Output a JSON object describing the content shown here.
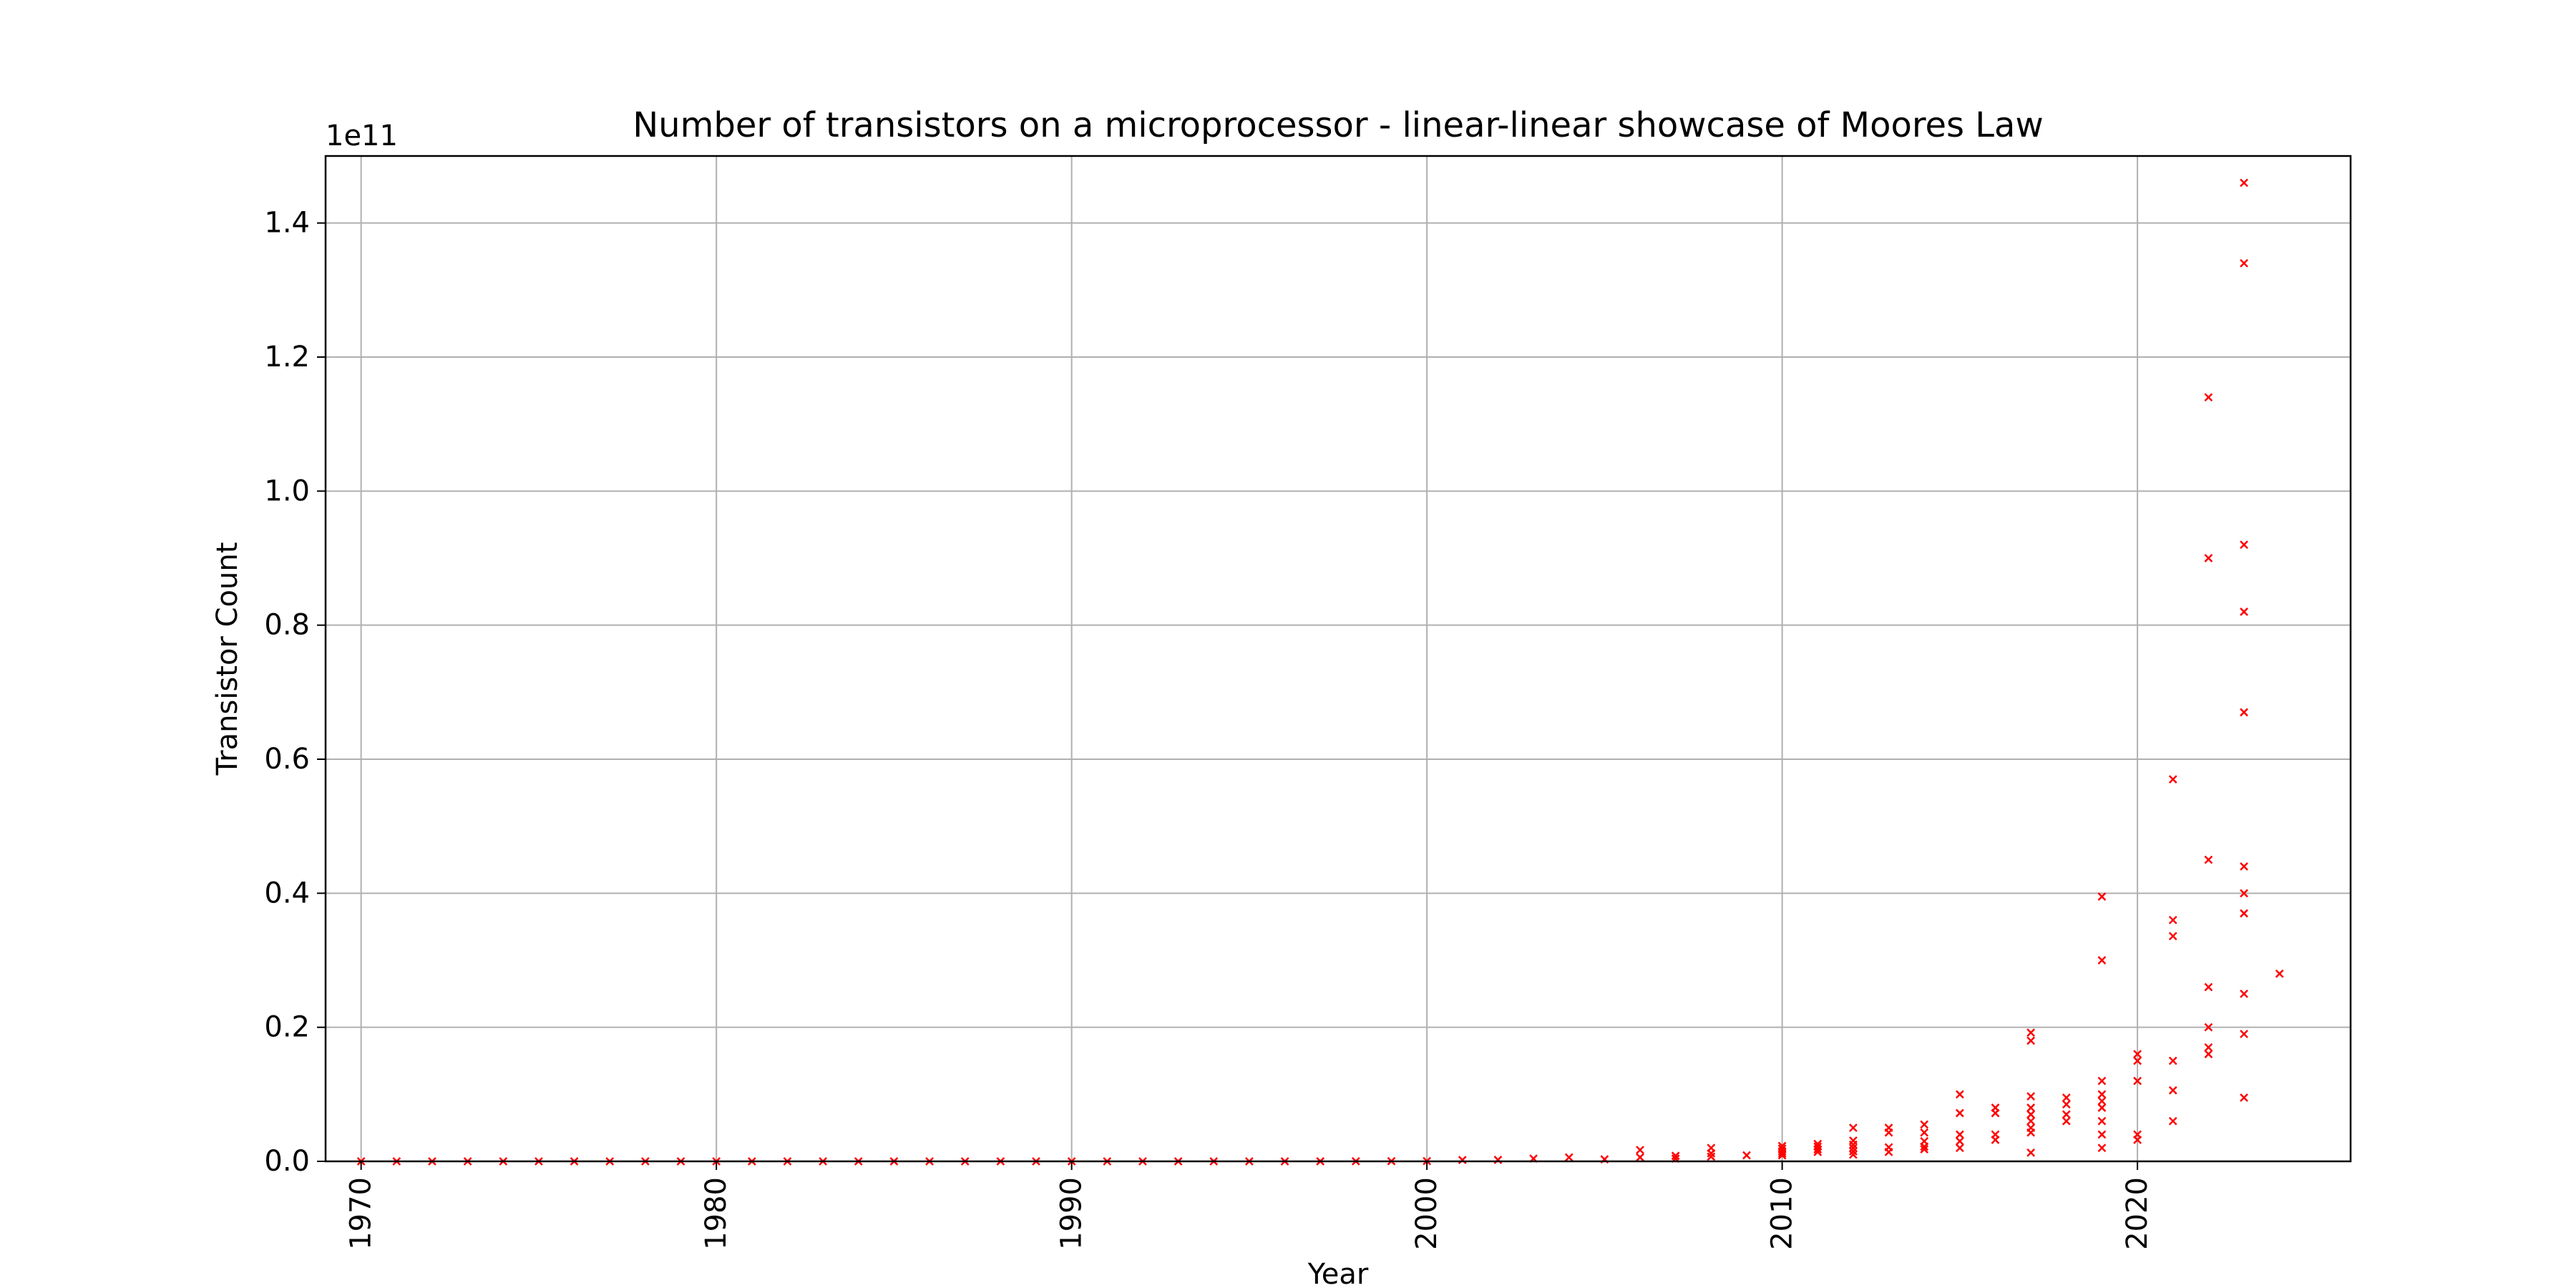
{
  "chart_data": {
    "type": "scatter",
    "title": "Number of transistors on a microprocessor - linear-linear showcase of Moores Law",
    "xlabel": "Year",
    "ylabel": "Transistor Count",
    "y_offset_label": "1e11",
    "xlim": [
      1969,
      2026
    ],
    "ylim": [
      0,
      150000000000.0
    ],
    "xticks": [
      1970,
      1980,
      1990,
      2000,
      2010,
      2020
    ],
    "xtick_labels": [
      "1970",
      "1980",
      "1990",
      "2000",
      "2010",
      "2020"
    ],
    "yticks": [
      0,
      20000000000.0,
      40000000000.0,
      60000000000.0,
      80000000000.0,
      100000000000.0,
      120000000000.0,
      140000000000.0
    ],
    "ytick_labels": [
      "0.0",
      "0.2",
      "0.4",
      "0.6",
      "0.8",
      "1.0",
      "1.2",
      "1.4"
    ],
    "grid": true,
    "marker": "x",
    "series": [
      {
        "color": "#ff0000",
        "points": [
          [
            1970,
            2300
          ],
          [
            1971,
            3500
          ],
          [
            1972,
            4500
          ],
          [
            1973,
            6000
          ],
          [
            1974,
            8000
          ],
          [
            1975,
            9000
          ],
          [
            1976,
            10000
          ],
          [
            1977,
            12000
          ],
          [
            1978,
            29000
          ],
          [
            1979,
            30000
          ],
          [
            1980,
            40000
          ],
          [
            1981,
            50000
          ],
          [
            1982,
            134000
          ],
          [
            1983,
            150000
          ],
          [
            1984,
            190000
          ],
          [
            1985,
            275000
          ],
          [
            1986,
            300000
          ],
          [
            1987,
            400000
          ],
          [
            1988,
            500000
          ],
          [
            1989,
            1180000
          ],
          [
            1990,
            1200000
          ],
          [
            1991,
            1350000
          ],
          [
            1992,
            3100000
          ],
          [
            1993,
            3100000
          ],
          [
            1994,
            3300000
          ],
          [
            1995,
            5500000
          ],
          [
            1996,
            5500000
          ],
          [
            1997,
            7500000
          ],
          [
            1998,
            9500000
          ],
          [
            1999,
            22000000
          ],
          [
            2000,
            42000000
          ],
          [
            2001,
            200000000
          ],
          [
            2002,
            220000000
          ],
          [
            2003,
            410000000
          ],
          [
            2004,
            592000000
          ],
          [
            2005,
            300000000
          ],
          [
            2006,
            1700000000
          ],
          [
            2006,
            600000000
          ],
          [
            2007,
            820000000
          ],
          [
            2007,
            400000000
          ],
          [
            2008,
            2000000000
          ],
          [
            2008,
            1200000000
          ],
          [
            2008,
            700000000
          ],
          [
            2009,
            900000000
          ],
          [
            2010,
            2300000000
          ],
          [
            2010,
            1900000000
          ],
          [
            2010,
            1500000000
          ],
          [
            2010,
            1200000000
          ],
          [
            2010,
            900000000
          ],
          [
            2011,
            2600000000
          ],
          [
            2011,
            2200000000
          ],
          [
            2011,
            1800000000
          ],
          [
            2011,
            1400000000
          ],
          [
            2012,
            5000000000
          ],
          [
            2012,
            3100000000
          ],
          [
            2012,
            2500000000
          ],
          [
            2012,
            2000000000
          ],
          [
            2012,
            1500000000
          ],
          [
            2012,
            1000000000
          ],
          [
            2013,
            5000000000
          ],
          [
            2013,
            4300000000
          ],
          [
            2013,
            2100000000
          ],
          [
            2013,
            1400000000
          ],
          [
            2014,
            5500000000
          ],
          [
            2014,
            4300000000
          ],
          [
            2014,
            3000000000
          ],
          [
            2014,
            2200000000
          ],
          [
            2014,
            1800000000
          ],
          [
            2015,
            10000000000
          ],
          [
            2015,
            7200000000
          ],
          [
            2015,
            4000000000
          ],
          [
            2015,
            3000000000
          ],
          [
            2015,
            2000000000
          ],
          [
            2016,
            8000000000
          ],
          [
            2016,
            7200000000
          ],
          [
            2016,
            4000000000
          ],
          [
            2016,
            3200000000
          ],
          [
            2017,
            19200000000
          ],
          [
            2017,
            18000000000
          ],
          [
            2017,
            9700000000
          ],
          [
            2017,
            8000000000
          ],
          [
            2017,
            7000000000
          ],
          [
            2017,
            6000000000
          ],
          [
            2017,
            5000000000
          ],
          [
            2017,
            4300000000
          ],
          [
            2017,
            1300000000
          ],
          [
            2018,
            9500000000
          ],
          [
            2018,
            8500000000
          ],
          [
            2018,
            7000000000
          ],
          [
            2018,
            6000000000
          ],
          [
            2019,
            39500000000
          ],
          [
            2019,
            30000000000
          ],
          [
            2019,
            12000000000
          ],
          [
            2019,
            10000000000
          ],
          [
            2019,
            9000000000
          ],
          [
            2019,
            8000000000
          ],
          [
            2019,
            6000000000
          ],
          [
            2019,
            4000000000
          ],
          [
            2019,
            2000000000
          ],
          [
            2020,
            16000000000
          ],
          [
            2020,
            15000000000
          ],
          [
            2020,
            12000000000
          ],
          [
            2020,
            4000000000
          ],
          [
            2020,
            3200000000
          ],
          [
            2021,
            57000000000
          ],
          [
            2021,
            36000000000
          ],
          [
            2021,
            33600000000
          ],
          [
            2021,
            15000000000
          ],
          [
            2021,
            10600000000
          ],
          [
            2021,
            6000000000
          ],
          [
            2022,
            114000000000
          ],
          [
            2022,
            90000000000
          ],
          [
            2022,
            45000000000
          ],
          [
            2022,
            26000000000
          ],
          [
            2022,
            20000000000
          ],
          [
            2022,
            17000000000
          ],
          [
            2022,
            16000000000
          ],
          [
            2023,
            146000000000
          ],
          [
            2023,
            134000000000
          ],
          [
            2023,
            92000000000
          ],
          [
            2023,
            82000000000
          ],
          [
            2023,
            67000000000
          ],
          [
            2023,
            44000000000
          ],
          [
            2023,
            40000000000
          ],
          [
            2023,
            37000000000
          ],
          [
            2023,
            25000000000
          ],
          [
            2023,
            19000000000
          ],
          [
            2023,
            9500000000
          ],
          [
            2024,
            28000000000
          ]
        ]
      }
    ]
  }
}
